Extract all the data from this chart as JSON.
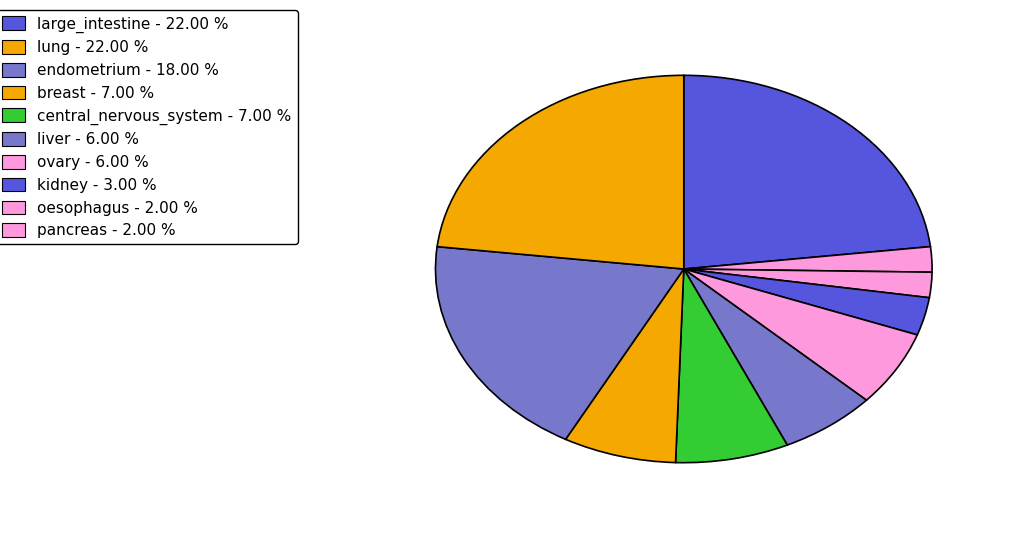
{
  "labels": [
    "large_intestine",
    "oesophagus",
    "pancreas",
    "kidney",
    "ovary",
    "liver",
    "central_nervous_system",
    "breast",
    "endometrium",
    "lung"
  ],
  "values": [
    22.0,
    2.0,
    2.0,
    3.0,
    6.0,
    6.0,
    7.0,
    7.0,
    18.0,
    22.0
  ],
  "colors": [
    "#5555dd",
    "#ff99dd",
    "#ff99dd",
    "#5555dd",
    "#ff99dd",
    "#7777cc",
    "#33cc33",
    "#f5a800",
    "#7777cc",
    "#f5a800"
  ],
  "legend_labels": [
    "large_intestine - 22.00 %",
    "lung - 22.00 %",
    "endometrium - 18.00 %",
    "breast - 7.00 %",
    "central_nervous_system - 7.00 %",
    "liver - 6.00 %",
    "ovary - 6.00 %",
    "kidney - 3.00 %",
    "oesophagus - 2.00 %",
    "pancreas - 2.00 %"
  ],
  "legend_colors": [
    "#5555dd",
    "#f5a800",
    "#7777cc",
    "#f5a800",
    "#33cc33",
    "#7777cc",
    "#ff99dd",
    "#5555dd",
    "#ff99dd",
    "#ff99dd"
  ],
  "startangle": 90,
  "counterclock": false,
  "figsize": [
    10.13,
    5.38
  ],
  "dpi": 100,
  "aspect_ratio": 0.78
}
